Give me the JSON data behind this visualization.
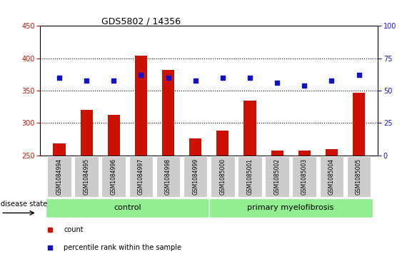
{
  "title": "GDS5802 / 14356",
  "samples": [
    "GSM1084994",
    "GSM1084995",
    "GSM1084996",
    "GSM1084997",
    "GSM1084998",
    "GSM1084999",
    "GSM1085000",
    "GSM1085001",
    "GSM1085002",
    "GSM1085003",
    "GSM1085004",
    "GSM1085005"
  ],
  "bar_values": [
    268,
    320,
    313,
    404,
    382,
    276,
    288,
    335,
    257,
    258,
    260,
    347
  ],
  "percentile_values": [
    60,
    58,
    58,
    62,
    60,
    58,
    60,
    60,
    56,
    54,
    58,
    62
  ],
  "bar_color": "#cc1100",
  "dot_color": "#1111cc",
  "ylim_left": [
    250,
    450
  ],
  "ylim_right": [
    0,
    100
  ],
  "yticks_left": [
    250,
    300,
    350,
    400,
    450
  ],
  "yticks_right": [
    0,
    25,
    50,
    75,
    100
  ],
  "grid_lines": [
    300,
    350,
    400
  ],
  "control_count": 6,
  "disease_count": 6,
  "control_label": "control",
  "disease_label": "primary myelofibrosis",
  "disease_state_label": "disease state",
  "legend_bar_label": "count",
  "legend_dot_label": "percentile rank within the sample",
  "group_bar_color": "#90ee90",
  "tick_label_bg": "#cccccc",
  "figsize": [
    5.63,
    3.63
  ],
  "dpi": 100
}
